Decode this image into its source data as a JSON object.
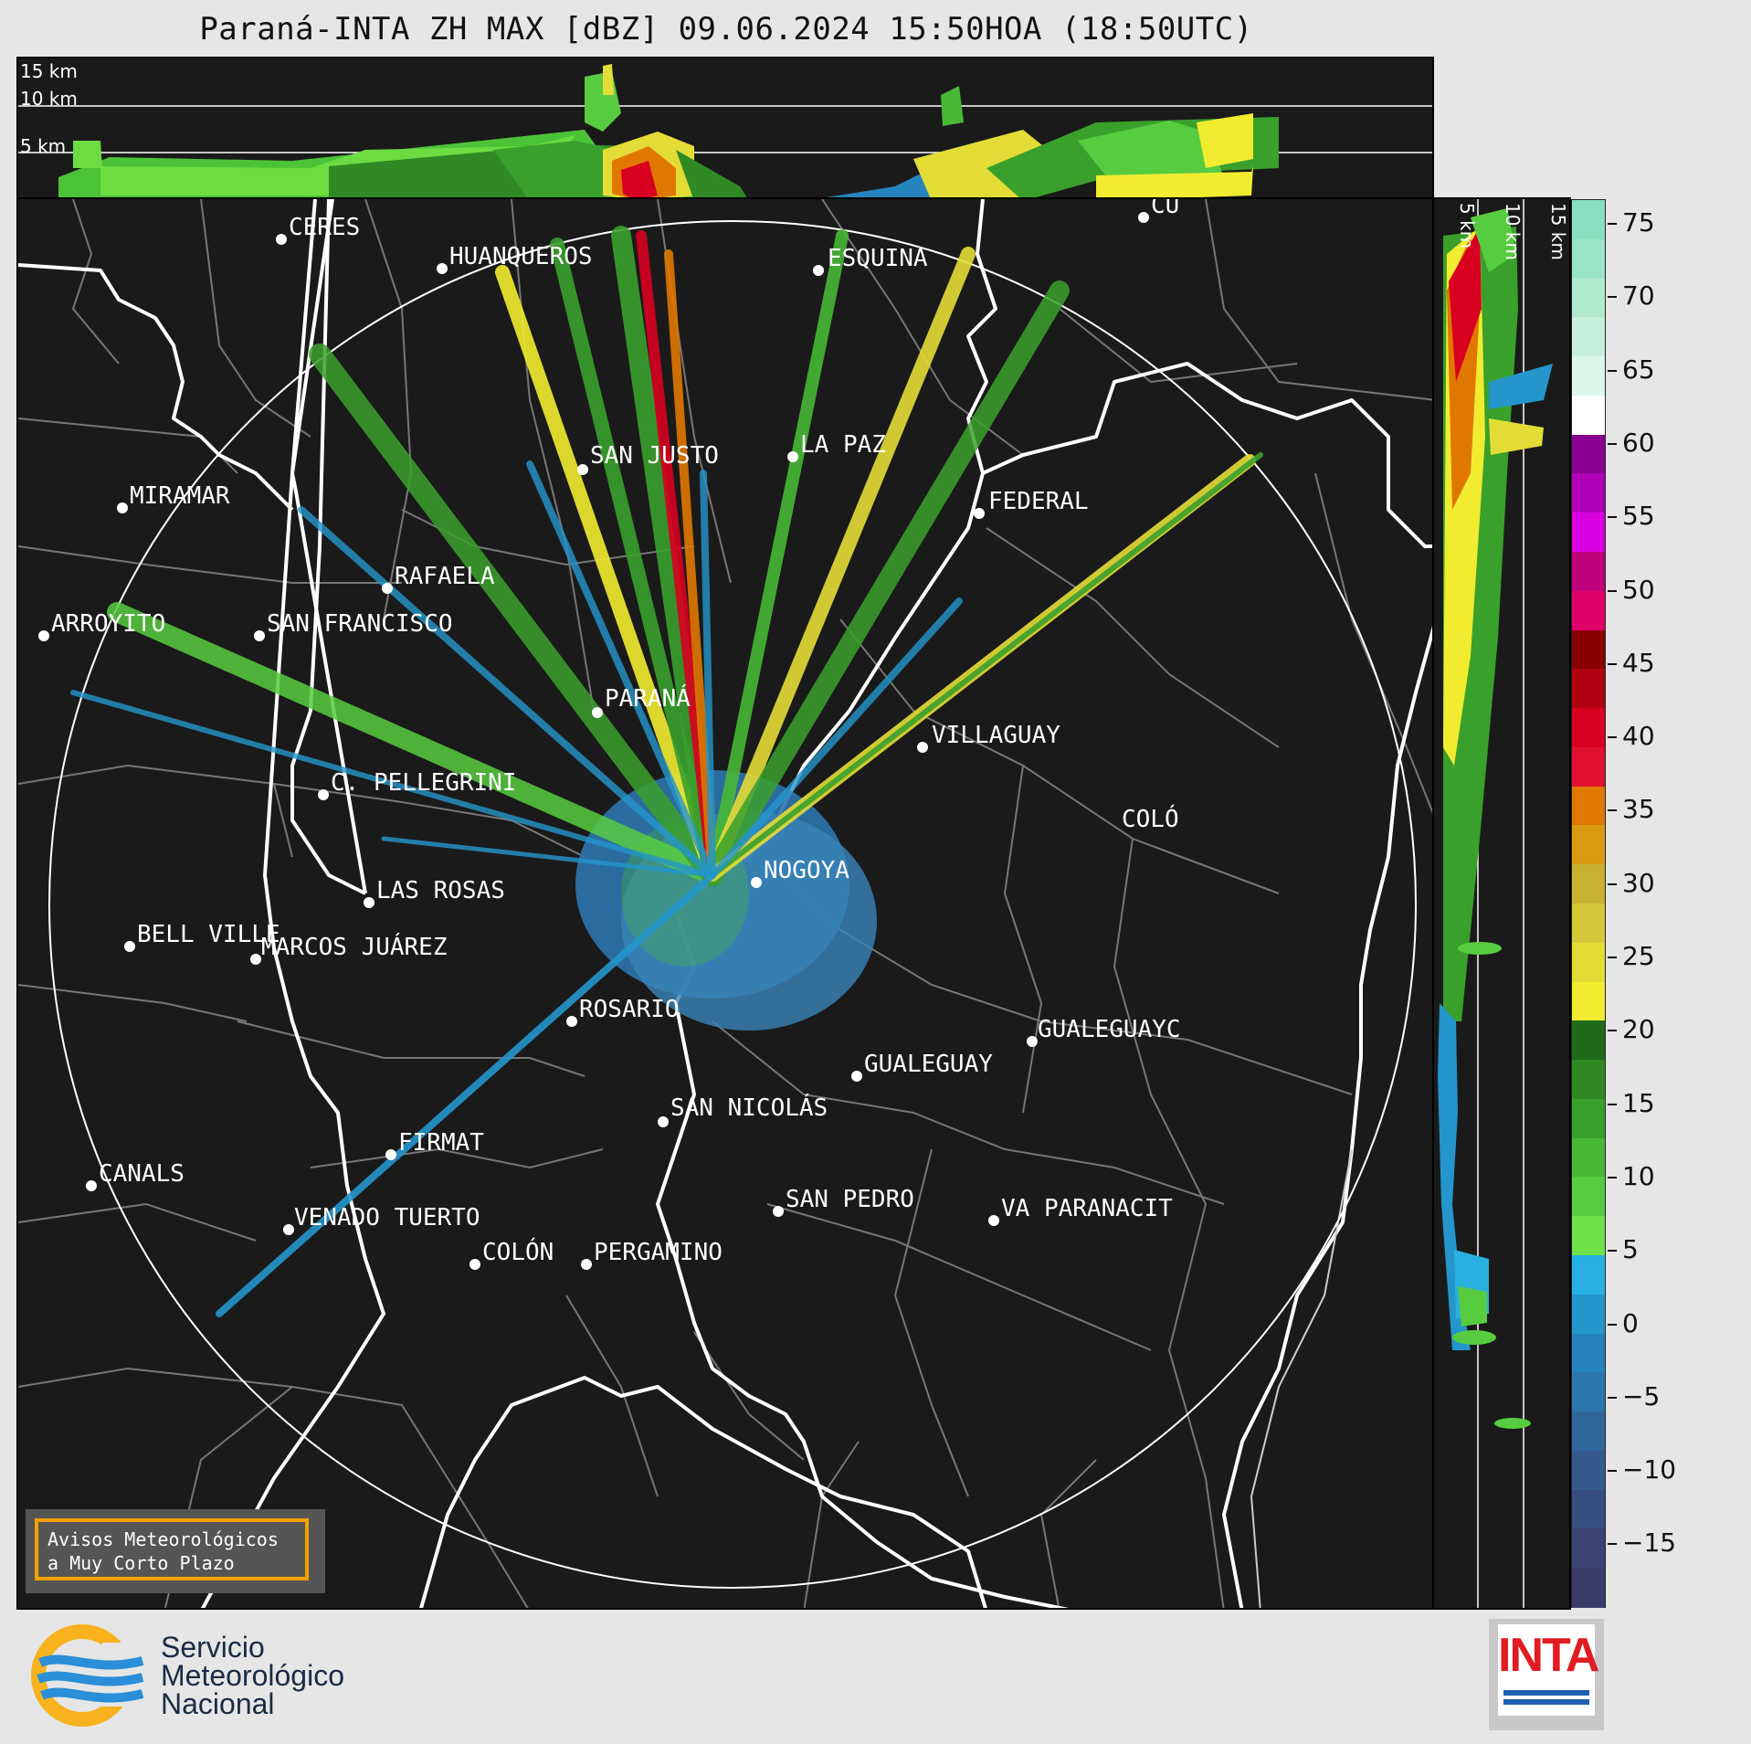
{
  "title": "Paraná-INTA ZH MAX [dBZ] 09.06.2024 15:50HOA (18:50UTC)",
  "top_panel": {
    "altitudes": [
      "15 km",
      "10 km",
      "5 km"
    ]
  },
  "side_panel": {
    "altitudes": [
      "5 km",
      "10 km",
      "15 km"
    ]
  },
  "colorbar": {
    "ticks": [
      "75",
      "70",
      "65",
      "60",
      "55",
      "50",
      "45",
      "40",
      "35",
      "30",
      "25",
      "20",
      "15",
      "10",
      "5",
      "0",
      "−5",
      "−10",
      "−15"
    ],
    "colors": [
      "#88dfc0",
      "#9ce4c8",
      "#b0eace",
      "#c6f0dc",
      "#dcf6ea",
      "#ffffff",
      "#8a0090",
      "#b000b8",
      "#d800e0",
      "#c0007a",
      "#e0006a",
      "#8a0000",
      "#b00010",
      "#d80020",
      "#e01030",
      "#e07800",
      "#d89a10",
      "#c8b030",
      "#d4c83a",
      "#e4dc36",
      "#f2ec30",
      "#206a1a",
      "#2f8a24",
      "#3aa02c",
      "#48b836",
      "#58cc40",
      "#6ee048",
      "#28b0e0",
      "#2496cc",
      "#2684bc",
      "#2c76ae",
      "#30689e",
      "#345a8e",
      "#374e80",
      "#3a4474",
      "#3c3c6a"
    ]
  },
  "cities": [
    {
      "name": "CERES"
    },
    {
      "name": "HUANQUEROS"
    },
    {
      "name": "ESQUINA"
    },
    {
      "name": "SAN JUSTO"
    },
    {
      "name": "LA PAZ"
    },
    {
      "name": "MIRAMAR"
    },
    {
      "name": "FEDERAL"
    },
    {
      "name": "RAFAELA"
    },
    {
      "name": "ARROYITO"
    },
    {
      "name": "SAN FRANCISCO"
    },
    {
      "name": "PARANÁ"
    },
    {
      "name": "VILLAGUAY"
    },
    {
      "name": "C. PELLEGRINI"
    },
    {
      "name": "COLÓ"
    },
    {
      "name": "NOGOYA"
    },
    {
      "name": "LAS ROSAS"
    },
    {
      "name": "BELL VILLE"
    },
    {
      "name": "MARCOS JUÁREZ"
    },
    {
      "name": "ROSARIO"
    },
    {
      "name": "GUALEGUAYC"
    },
    {
      "name": "GUALEGUAY"
    },
    {
      "name": "SAN NICOLÁS"
    },
    {
      "name": "FIRMAT"
    },
    {
      "name": "CANALS"
    },
    {
      "name": "SAN PEDRO"
    },
    {
      "name": "VENADO TUERTO"
    },
    {
      "name": "VA PARANACIT"
    },
    {
      "name": "COLÓN"
    },
    {
      "name": "PERGAMINO"
    },
    {
      "name": "CU"
    }
  ],
  "avisos": {
    "line1": "Avisos Meteorológicos",
    "line2": "a Muy Corto Plazo"
  },
  "smn": {
    "line1": "Servicio",
    "line2": "Meteorológico",
    "line3": "Nacional"
  },
  "inta": {
    "label": "INTA"
  }
}
